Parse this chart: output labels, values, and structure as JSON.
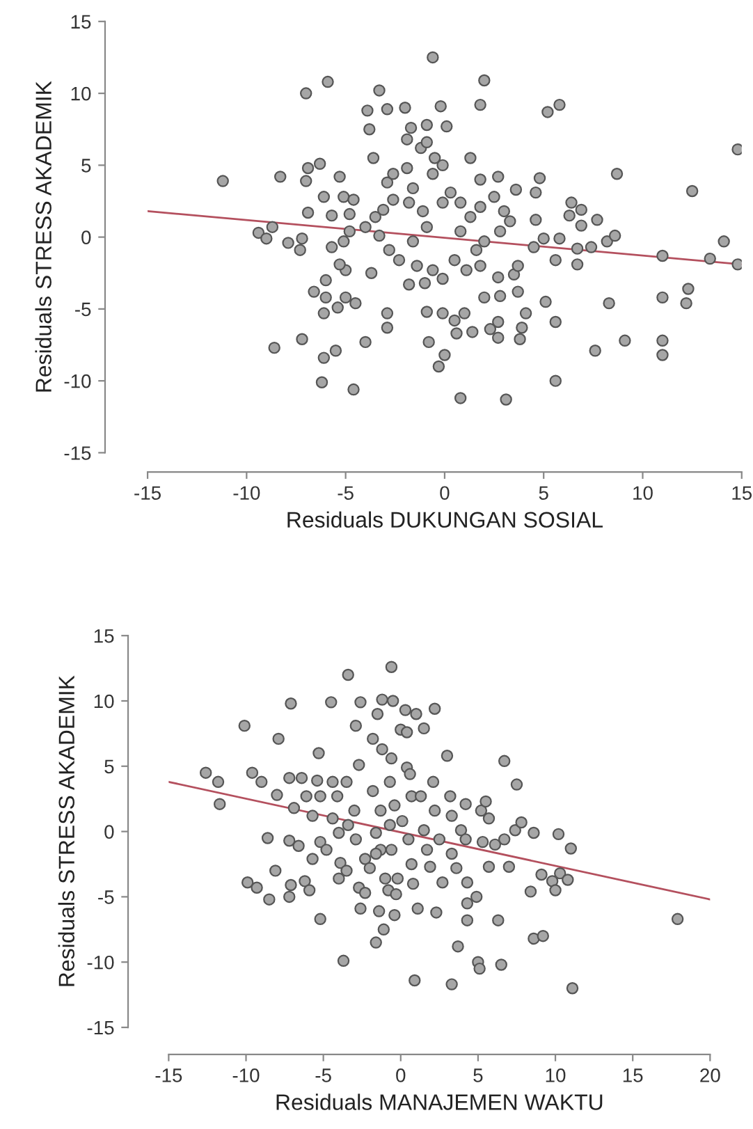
{
  "chart_data": [
    {
      "type": "scatter",
      "xlabel": "Residuals DUKUNGAN SOSIAL",
      "ylabel": "Residuals STRESS AKADEMIK",
      "xlim": [
        -15,
        15
      ],
      "ylim": [
        -15,
        15
      ],
      "xticks": [
        -15,
        -10,
        -5,
        0,
        5,
        10,
        15
      ],
      "yticks": [
        -15,
        -10,
        -5,
        0,
        5,
        10,
        15
      ],
      "grid": false,
      "legend": false,
      "series": [
        {
          "marker": "circle",
          "color": "#a6a6a6",
          "x": [
            -11.2,
            -9.4,
            -9.0,
            -8.7,
            -8.3,
            -7.9,
            -7.2,
            -7.3,
            -7.0,
            -7.0,
            -6.9,
            -6.9,
            -6.3,
            -5.9,
            -6.1,
            -5.3,
            -5.7,
            -5.7,
            -5.1,
            -4.6,
            -5.1,
            -5.0,
            -5.3,
            -4.8,
            -4.8,
            -6.6,
            -6.0,
            -6.0,
            -6.1,
            -5.4,
            -5.0,
            -4.5,
            -7.2,
            -8.6,
            -6.1,
            -5.5,
            -6.2,
            -4.6,
            -4.0,
            -3.9,
            -3.8,
            -3.6,
            -3.3,
            -2.9,
            -2.0,
            -2.9,
            -2.6,
            -1.7,
            -1.9,
            -1.2,
            -0.9,
            -0.9,
            -0.6,
            -0.2,
            0.1,
            -0.5,
            -0.1,
            -0.6,
            -1.9,
            -1.6,
            -3.5,
            -3.1,
            -2.6,
            -1.8,
            -1.1,
            -4.0,
            -3.3,
            -2.8,
            -2.3,
            -1.6,
            -0.9,
            -0.1,
            0.3,
            0.8,
            1.3,
            1.8,
            2.5,
            3.0,
            0.8,
            1.6,
            2.0,
            2.8,
            3.3,
            0.5,
            1.1,
            1.8,
            -1.4,
            -0.6,
            -1.8,
            -1.0,
            -0.1,
            -3.7,
            -2.9,
            -2.9,
            -0.9,
            -0.1,
            0.5,
            1.0,
            0.6,
            1.4,
            -0.8,
            0.0,
            -0.3,
            0.8,
            2.0,
            1.8,
            1.3,
            1.8,
            2.7,
            3.6,
            4.6,
            4.8,
            5.2,
            5.8,
            4.6,
            4.5,
            5.0,
            5.8,
            5.6,
            6.7,
            6.3,
            6.4,
            6.9,
            6.9,
            7.7,
            6.7,
            7.4,
            8.2,
            8.6,
            8.7,
            2.7,
            3.5,
            3.7,
            2.0,
            2.8,
            3.7,
            4.1,
            5.1,
            3.9,
            3.8,
            2.7,
            2.3,
            2.7,
            5.6,
            5.6,
            3.1,
            7.6,
            8.3,
            9.1,
            11.0,
            11.0,
            11.0,
            11.0,
            12.3,
            12.2,
            12.5,
            13.4,
            14.1,
            14.8,
            14.8
          ],
          "values": [
            3.9,
            0.3,
            -0.1,
            0.7,
            4.2,
            -0.4,
            -0.1,
            -0.9,
            10.0,
            3.9,
            4.8,
            1.7,
            5.1,
            10.8,
            2.8,
            4.2,
            1.5,
            -0.7,
            2.8,
            2.6,
            -0.3,
            -2.3,
            -1.9,
            1.6,
            0.4,
            -3.8,
            -3.0,
            -4.2,
            -5.3,
            -4.9,
            -4.2,
            -4.6,
            -7.1,
            -7.7,
            -8.4,
            -7.9,
            -10.1,
            -10.6,
            -7.3,
            8.8,
            7.5,
            5.5,
            10.2,
            8.9,
            9.0,
            3.8,
            4.4,
            7.6,
            6.8,
            6.2,
            6.6,
            7.8,
            12.5,
            9.1,
            7.7,
            5.5,
            5.0,
            4.4,
            4.8,
            3.4,
            1.4,
            1.9,
            2.6,
            2.4,
            1.8,
            0.7,
            0.1,
            -0.9,
            -1.6,
            -0.3,
            0.7,
            2.4,
            3.1,
            2.4,
            1.4,
            2.1,
            2.8,
            1.8,
            0.4,
            -0.9,
            -0.3,
            0.4,
            1.1,
            -1.6,
            -2.3,
            -2.0,
            -2.0,
            -2.3,
            -3.3,
            -3.2,
            -2.9,
            -2.5,
            -5.3,
            -6.3,
            -5.2,
            -5.3,
            -5.8,
            -5.3,
            -6.7,
            -6.6,
            -7.3,
            -8.2,
            -9.0,
            -11.2,
            10.9,
            9.2,
            5.5,
            4.0,
            4.2,
            3.3,
            3.1,
            4.1,
            8.7,
            9.2,
            1.2,
            -0.7,
            -0.1,
            -0.1,
            -1.6,
            -1.9,
            1.5,
            2.4,
            1.9,
            0.8,
            1.2,
            -0.8,
            -0.7,
            -0.3,
            0.1,
            4.4,
            -2.8,
            -2.6,
            -2.0,
            -4.2,
            -4.1,
            -3.8,
            -5.3,
            -4.5,
            -6.3,
            -7.1,
            -5.9,
            -6.4,
            -7.0,
            -5.9,
            -10.0,
            -11.3,
            -7.9,
            -4.6,
            -7.2,
            -1.3,
            -4.2,
            -7.2,
            -8.2,
            -3.6,
            -4.6,
            3.2,
            -1.5,
            -0.3,
            -1.9,
            6.1
          ]
        },
        {
          "type": "line",
          "marker": "none",
          "color": "#b4505e",
          "x": [
            -15,
            15
          ],
          "values": [
            1.8,
            -1.9
          ]
        }
      ]
    },
    {
      "type": "scatter",
      "xlabel": "Residuals MANAJEMEN WAKTU",
      "ylabel": "Residuals STRESS AKADEMIK",
      "xlim": [
        -15,
        20
      ],
      "ylim": [
        -15,
        15
      ],
      "xticks": [
        -15,
        -10,
        -5,
        0,
        5,
        10,
        15,
        20
      ],
      "yticks": [
        -15,
        -10,
        -5,
        0,
        5,
        10,
        15
      ],
      "grid": false,
      "legend": false,
      "series": [
        {
          "marker": "circle",
          "color": "#a6a6a6",
          "x": [
            -12.6,
            -11.8,
            -11.7,
            -10.1,
            -9.6,
            -9.0,
            -8.6,
            -8.0,
            -7.9,
            -8.1,
            -9.9,
            -9.3,
            -8.5,
            -7.2,
            -7.1,
            -6.9,
            -7.2,
            -6.6,
            -7.1,
            -7.2,
            -6.2,
            -5.9,
            -6.4,
            -6.1,
            -5.7,
            -5.3,
            -5.4,
            -5.2,
            -5.2,
            -5.7,
            -5.2,
            -4.5,
            -4.4,
            -4.1,
            -4.4,
            -4.0,
            -4.8,
            -3.9,
            -3.7,
            -4.0,
            -3.5,
            -3.4,
            -3.5,
            -2.9,
            -2.6,
            -2.7,
            -3.0,
            -3.4,
            -2.9,
            -2.7,
            -2.3,
            -2.6,
            -2.3,
            -2.0,
            -1.5,
            -1.8,
            -1.2,
            -1.8,
            -1.3,
            -1.6,
            -1.3,
            -1.6,
            -1.4,
            -1.1,
            -1.6,
            -1.0,
            -1.2,
            -0.6,
            -0.5,
            -0.6,
            -0.7,
            -0.4,
            -0.7,
            -0.6,
            -0.8,
            -0.3,
            -0.4,
            -0.2,
            0.1,
            0.4,
            0.6,
            0.3,
            1.0,
            0.0,
            0.4,
            0.7,
            0.5,
            0.7,
            0.8,
            0.9,
            1.5,
            1.3,
            1.5,
            1.1,
            1.7,
            1.9,
            2.1,
            2.2,
            2.2,
            2.3,
            2.5,
            2.7,
            3.0,
            3.2,
            3.3,
            3.3,
            3.6,
            3.3,
            3.7,
            3.9,
            4.2,
            4.2,
            4.3,
            4.3,
            4.3,
            4.9,
            5.0,
            5.1,
            5.2,
            5.5,
            5.7,
            5.3,
            6.1,
            5.7,
            6.7,
            6.7,
            6.3,
            6.5,
            7.0,
            7.4,
            7.5,
            7.8,
            8.6,
            8.4,
            8.6,
            9.2,
            9.1,
            9.8,
            10.0,
            10.2,
            10.3,
            10.8,
            11.0,
            11.1,
            17.9
          ],
          "values": [
            4.5,
            3.8,
            2.1,
            8.1,
            4.5,
            3.8,
            -0.5,
            2.8,
            7.1,
            -3.0,
            -3.9,
            -4.3,
            -5.2,
            4.1,
            9.8,
            1.8,
            -0.7,
            -1.1,
            -4.1,
            -5.0,
            -3.8,
            -4.5,
            4.1,
            2.7,
            1.2,
            6.0,
            3.9,
            2.7,
            -0.8,
            -2.1,
            -6.7,
            9.9,
            3.8,
            2.7,
            1.0,
            -0.1,
            -1.4,
            -2.4,
            -9.9,
            -3.6,
            -3.0,
            12.0,
            3.8,
            8.1,
            9.9,
            5.1,
            1.6,
            0.5,
            -0.6,
            -4.3,
            -4.7,
            -5.9,
            -2.1,
            -2.8,
            9.0,
            7.1,
            6.3,
            3.1,
            1.6,
            -0.1,
            -1.4,
            -1.7,
            -6.1,
            -7.5,
            -8.5,
            -3.6,
            10.1,
            12.6,
            10.0,
            5.6,
            3.8,
            2.0,
            0.5,
            -1.4,
            -4.5,
            -4.8,
            -6.4,
            -3.6,
            0.8,
            4.9,
            4.4,
            9.3,
            9.0,
            7.8,
            7.6,
            2.7,
            -0.6,
            -2.5,
            -4.0,
            -11.4,
            7.9,
            2.7,
            0.1,
            -5.9,
            -1.4,
            -2.7,
            3.8,
            9.4,
            1.6,
            -6.2,
            -0.6,
            -3.9,
            5.8,
            2.7,
            1.2,
            -1.7,
            -2.8,
            -11.7,
            -8.8,
            0.1,
            2.1,
            -0.6,
            -3.9,
            -5.5,
            -6.8,
            -5.0,
            -10.0,
            -10.5,
            1.6,
            2.3,
            1.0,
            -0.8,
            -1.0,
            -2.7,
            -0.6,
            5.4,
            -6.8,
            -10.2,
            -2.7,
            0.1,
            3.6,
            0.7,
            -0.1,
            -4.6,
            -8.2,
            -8.0,
            -3.3,
            -3.8,
            -4.5,
            -0.2,
            -3.2,
            -3.7,
            -1.3,
            -12.0,
            -6.7
          ]
        },
        {
          "type": "line",
          "marker": "none",
          "color": "#b4505e",
          "x": [
            -15,
            20
          ],
          "values": [
            3.8,
            -5.2
          ]
        }
      ]
    }
  ]
}
